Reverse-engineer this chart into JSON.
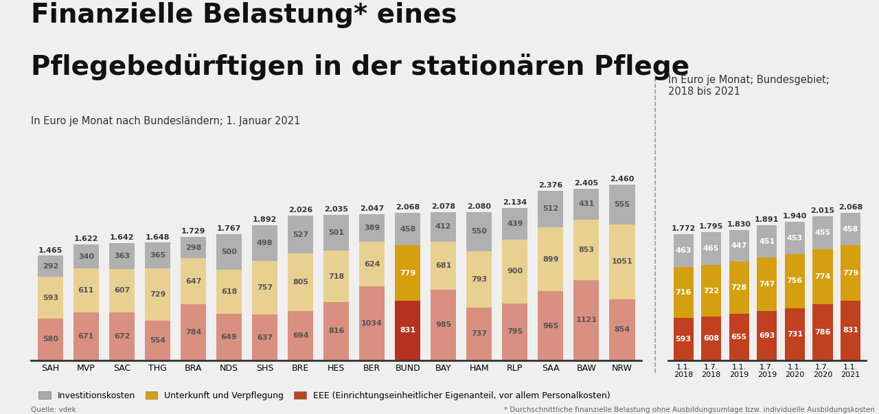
{
  "title_line1": "Finanzielle Belastung* eines",
  "title_line2": "Pflegebedürftigen in der stationären Pflege",
  "subtitle_left": "In Euro je Monat nach Bundesländern; 1. Januar 2021",
  "subtitle_right": "In Euro je Monat; Bundesgebiet;\n2018 bis 2021",
  "source": "Quelle: vdek",
  "footnote": "* Durchschnittliche finanzielle Belastung ohne Ausbildungsumlage bzw. individuelle Ausbildungskosten",
  "legend_items": [
    "Investitionskosten",
    "Unterkunft und Verpflegung",
    "EEE (Einrichtungseinheitlicher Eigenanteil, vor allem Personalkosten)"
  ],
  "c_inv": "#b0b0b0",
  "c_inv_legend": "#aaaaaa",
  "c_unt_main": "#e8d090",
  "c_unt_bund": "#d4a010",
  "c_unt_time": "#d4a010",
  "c_eee_main": "#d99080",
  "c_eee_bund": "#b83020",
  "c_eee_time": "#c04020",
  "c_eee_legend": "#c04020",
  "bg": "#efefef",
  "main_categories": [
    "SAH",
    "MVP",
    "SAC",
    "THG",
    "BRA",
    "NDS",
    "SHS",
    "BRE",
    "HES",
    "BER",
    "BUND",
    "BAY",
    "HAM",
    "RLP",
    "SAA",
    "BAW",
    "NRW"
  ],
  "main_data": {
    "SAH": {
      "eee": 580,
      "unterkunft": 593,
      "investition": 292,
      "total": 1465,
      "bund": false
    },
    "MVP": {
      "eee": 671,
      "unterkunft": 611,
      "investition": 340,
      "total": 1622,
      "bund": false
    },
    "SAC": {
      "eee": 672,
      "unterkunft": 607,
      "investition": 363,
      "total": 1642,
      "bund": false
    },
    "THG": {
      "eee": 554,
      "unterkunft": 729,
      "investition": 365,
      "total": 1648,
      "bund": false
    },
    "BRA": {
      "eee": 784,
      "unterkunft": 647,
      "investition": 298,
      "total": 1729,
      "bund": false
    },
    "NDS": {
      "eee": 649,
      "unterkunft": 618,
      "investition": 500,
      "total": 1767,
      "bund": false
    },
    "SHS": {
      "eee": 637,
      "unterkunft": 757,
      "investition": 498,
      "total": 1892,
      "bund": false
    },
    "BRE": {
      "eee": 694,
      "unterkunft": 805,
      "investition": 527,
      "total": 2026,
      "bund": false
    },
    "HES": {
      "eee": 816,
      "unterkunft": 718,
      "investition": 501,
      "total": 2035,
      "bund": false
    },
    "BER": {
      "eee": 1034,
      "unterkunft": 624,
      "investition": 389,
      "total": 2047,
      "bund": false
    },
    "BUND": {
      "eee": 831,
      "unterkunft": 779,
      "investition": 458,
      "total": 2068,
      "bund": true
    },
    "BAY": {
      "eee": 985,
      "unterkunft": 681,
      "investition": 412,
      "total": 2078,
      "bund": false
    },
    "HAM": {
      "eee": 737,
      "unterkunft": 793,
      "investition": 550,
      "total": 2080,
      "bund": false
    },
    "RLP": {
      "eee": 795,
      "unterkunft": 900,
      "investition": 439,
      "total": 2134,
      "bund": false
    },
    "SAA": {
      "eee": 965,
      "unterkunft": 899,
      "investition": 512,
      "total": 2376,
      "bund": false
    },
    "BAW": {
      "eee": 1121,
      "unterkunft": 853,
      "investition": 431,
      "total": 2405,
      "bund": false
    },
    "NRW": {
      "eee": 854,
      "unterkunft": 1051,
      "investition": 555,
      "total": 2460,
      "bund": false
    }
  },
  "time_categories": [
    "1.1.\n2018",
    "1.7.\n2018",
    "1.1.\n2019",
    "1.7.\n2019",
    "1.1.\n2020",
    "1.7.\n2020",
    "1.1.\n2021"
  ],
  "time_data": {
    "1.1.\n2018": {
      "eee": 593,
      "unterkunft": 716,
      "investition": 463,
      "total": 1772
    },
    "1.7.\n2018": {
      "eee": 608,
      "unterkunft": 722,
      "investition": 465,
      "total": 1795
    },
    "1.1.\n2019": {
      "eee": 655,
      "unterkunft": 728,
      "investition": 447,
      "total": 1830
    },
    "1.7.\n2019": {
      "eee": 693,
      "unterkunft": 747,
      "investition": 451,
      "total": 1891
    },
    "1.1.\n2020": {
      "eee": 731,
      "unterkunft": 756,
      "investition": 453,
      "total": 1940
    },
    "1.7.\n2020": {
      "eee": 786,
      "unterkunft": 774,
      "investition": 455,
      "total": 2015
    },
    "1.1.\n2021": {
      "eee": 831,
      "unterkunft": 779,
      "investition": 458,
      "total": 2068
    }
  },
  "ylim": 2700,
  "bar_width": 0.72,
  "label_fs": 8,
  "tick_fs": 9,
  "legend_fs": 9
}
